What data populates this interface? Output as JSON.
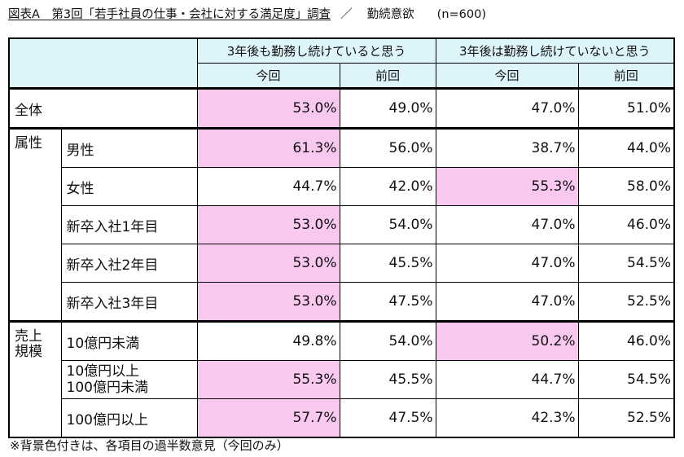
{
  "title": {
    "main": "図表A　第3回「若手社員の仕事・会社に対する満足度」調査",
    "separator": "／",
    "topic": "勤続意欲",
    "sample": "(n=600)"
  },
  "table": {
    "headers": {
      "group_stay": "3年後も勤務し続けていると思う",
      "group_leave": "3年後は勤務し続けていないと思う",
      "current": "今回",
      "previous": "前回"
    },
    "rows": [
      {
        "group": "全体",
        "label": "",
        "stay_cur": "53.0%",
        "stay_prev": "49.0%",
        "leave_cur": "47.0%",
        "leave_prev": "51.0%",
        "hl": "stay"
      },
      {
        "group": "属性",
        "label": "男性",
        "stay_cur": "61.3%",
        "stay_prev": "56.0%",
        "leave_cur": "38.7%",
        "leave_prev": "44.0%",
        "hl": "stay"
      },
      {
        "group": "",
        "label": "女性",
        "stay_cur": "44.7%",
        "stay_prev": "42.0%",
        "leave_cur": "55.3%",
        "leave_prev": "58.0%",
        "hl": "leave"
      },
      {
        "group": "",
        "label": "新卒入社1年目",
        "stay_cur": "53.0%",
        "stay_prev": "54.0%",
        "leave_cur": "47.0%",
        "leave_prev": "46.0%",
        "hl": "stay"
      },
      {
        "group": "",
        "label": "新卒入社2年目",
        "stay_cur": "53.0%",
        "stay_prev": "45.5%",
        "leave_cur": "47.0%",
        "leave_prev": "54.5%",
        "hl": "stay"
      },
      {
        "group": "",
        "label": "新卒入社3年目",
        "stay_cur": "53.0%",
        "stay_prev": "47.5%",
        "leave_cur": "47.0%",
        "leave_prev": "52.5%",
        "hl": "stay"
      },
      {
        "group": "売上規模",
        "label": "10億円未満",
        "stay_cur": "49.8%",
        "stay_prev": "54.0%",
        "leave_cur": "50.2%",
        "leave_prev": "46.0%",
        "hl": "leave"
      },
      {
        "group": "",
        "label": "10億円以上",
        "label2": "100億円未満",
        "stay_cur": "55.3%",
        "stay_prev": "45.5%",
        "leave_cur": "44.7%",
        "leave_prev": "54.5%",
        "hl": "stay"
      },
      {
        "group": "",
        "label": "100億円以上",
        "stay_cur": "57.7%",
        "stay_prev": "47.5%",
        "leave_cur": "42.3%",
        "leave_prev": "52.5%",
        "hl": "stay"
      }
    ],
    "group_labels": {
      "attr": "属性",
      "sales_line1": "売上",
      "sales_line2": "規模"
    }
  },
  "note": "※背景色付きは、各項目の過半数意見（今回のみ）",
  "colors": {
    "header_bg": "#ddf4fb",
    "highlight_bg": "#f8c8ee"
  }
}
